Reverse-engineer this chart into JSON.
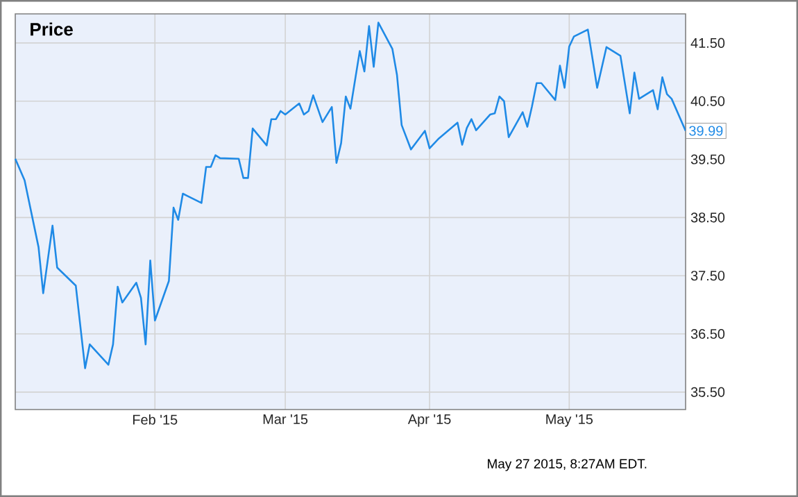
{
  "chart_data": {
    "type": "line",
    "title": "Price",
    "x": [
      "2015-01-02",
      "2015-01-04",
      "2015-01-07",
      "2015-01-08",
      "2015-01-10",
      "2015-01-11",
      "2015-01-15",
      "2015-01-17",
      "2015-01-18",
      "2015-01-22",
      "2015-01-23",
      "2015-01-24",
      "2015-01-25",
      "2015-01-28",
      "2015-01-29",
      "2015-01-30",
      "2015-01-31",
      "2015-02-01",
      "2015-02-04",
      "2015-02-05",
      "2015-02-06",
      "2015-02-07",
      "2015-02-08",
      "2015-02-11",
      "2015-02-12",
      "2015-02-13",
      "2015-02-14",
      "2015-02-15",
      "2015-02-19",
      "2015-02-20",
      "2015-02-21",
      "2015-02-22",
      "2015-02-25",
      "2015-02-26",
      "2015-02-27",
      "2015-02-28",
      "2015-03-01",
      "2015-03-04",
      "2015-03-05",
      "2015-03-06",
      "2015-03-07",
      "2015-03-09",
      "2015-03-11",
      "2015-03-12",
      "2015-03-13",
      "2015-03-14",
      "2015-03-15",
      "2015-03-17",
      "2015-03-18",
      "2015-03-19",
      "2015-03-20",
      "2015-03-21",
      "2015-03-24",
      "2015-03-25",
      "2015-03-26",
      "2015-03-28",
      "2015-03-31",
      "2015-04-01",
      "2015-04-03",
      "2015-04-07",
      "2015-04-08",
      "2015-04-09",
      "2015-04-10",
      "2015-04-11",
      "2015-04-14",
      "2015-04-15",
      "2015-04-16",
      "2015-04-17",
      "2015-04-18",
      "2015-04-21",
      "2015-04-22",
      "2015-04-23",
      "2015-04-24",
      "2015-04-25",
      "2015-04-28",
      "2015-04-29",
      "2015-04-30",
      "2015-05-01",
      "2015-05-02",
      "2015-05-05",
      "2015-05-07",
      "2015-05-09",
      "2015-05-12",
      "2015-05-14",
      "2015-05-15",
      "2015-05-16",
      "2015-05-19",
      "2015-05-20",
      "2015-05-21",
      "2015-05-22",
      "2015-05-23",
      "2015-05-26"
    ],
    "series": [
      {
        "color": "#1f8ae6",
        "values": [
          39.51,
          39.14,
          37.99,
          37.2,
          38.36,
          37.64,
          37.33,
          35.91,
          36.32,
          35.97,
          36.32,
          37.31,
          37.04,
          37.38,
          37.12,
          36.32,
          37.76,
          36.73,
          37.41,
          38.67,
          38.46,
          38.91,
          38.87,
          38.75,
          39.37,
          39.37,
          39.57,
          39.52,
          39.51,
          39.18,
          39.18,
          40.03,
          39.74,
          40.19,
          40.19,
          40.33,
          40.27,
          40.46,
          40.27,
          40.33,
          40.6,
          40.14,
          40.4,
          39.44,
          39.78,
          40.58,
          40.37,
          41.36,
          41.01,
          41.79,
          41.09,
          41.85,
          41.4,
          40.95,
          40.09,
          39.67,
          39.99,
          39.69,
          39.86,
          40.13,
          39.75,
          40.04,
          40.19,
          40.0,
          40.27,
          40.29,
          40.58,
          40.5,
          39.88,
          40.31,
          40.06,
          40.41,
          40.81,
          40.81,
          40.52,
          41.11,
          40.73,
          41.44,
          41.61,
          41.73,
          40.73,
          41.43,
          41.28,
          40.29,
          40.99,
          40.54,
          40.69,
          40.36,
          40.91,
          40.62,
          40.54,
          39.99
        ]
      }
    ],
    "xlim": [
      "2015-01-02",
      "2015-05-26"
    ],
    "xticks": [
      {
        "value": "2015-02-01",
        "label": "Feb '15"
      },
      {
        "value": "2015-03-01",
        "label": "Mar '15"
      },
      {
        "value": "2015-04-01",
        "label": "Apr '15"
      },
      {
        "value": "2015-05-01",
        "label": "May '15"
      }
    ],
    "ylim": [
      35.2,
      42.0
    ],
    "yticks": [
      {
        "value": 35.5,
        "label": "35.50"
      },
      {
        "value": 36.5,
        "label": "36.50"
      },
      {
        "value": 37.5,
        "label": "37.50"
      },
      {
        "value": 38.5,
        "label": "38.50"
      },
      {
        "value": 39.5,
        "label": "39.50"
      },
      {
        "value": 40.5,
        "label": "40.50"
      },
      {
        "value": 41.5,
        "label": "41.50"
      }
    ],
    "grid": true,
    "marker": "none",
    "line_style": "solid",
    "annotations": [
      {
        "text": "39.99",
        "x": "2015-05-26",
        "y": 39.99
      },
      "May 27 2015, 8:27AM EDT."
    ]
  }
}
